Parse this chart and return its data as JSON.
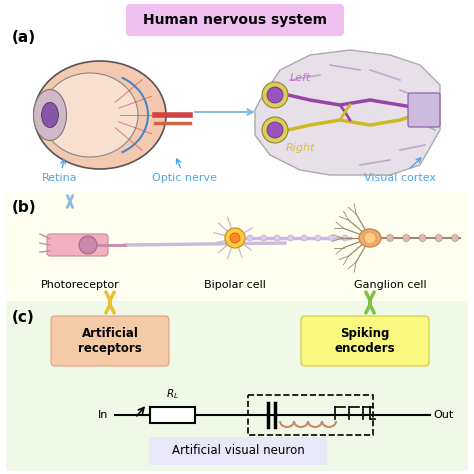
{
  "title_text": "Human nervous system",
  "title_bg": "#f0c0f0",
  "label_a": "(a)",
  "label_b": "(b)",
  "label_c": "(c)",
  "retina_label": "Retina",
  "optic_label": "Optic nerve",
  "cortex_label": "Visual cortex",
  "left_label": "Left",
  "right_label": "Right",
  "photo_label": "Photoreceptor",
  "bipolar_label": "Bipolar cell",
  "ganglion_label": "Ganglion cell",
  "art_recept_label": "Artificial\nreceptors",
  "spiking_label": "Spiking\nencoders",
  "in_label": "In",
  "out_label": "Out",
  "rl_label": "$R_L$",
  "neuron_label": "Artificial visual neuron",
  "bg_color": "#ffffff",
  "panel_b_bg": "#fffff0",
  "panel_c_bg": "#f0f8e8",
  "art_recept_bg": "#f5cba7",
  "spiking_bg": "#f9f980",
  "neuron_label_bg": "#e8e8f8",
  "blue_label_color": "#4da6e8",
  "left_color": "#d070d0",
  "right_color": "#d4c040",
  "arrow_yellow": "#e8c030",
  "arrow_green": "#80c040"
}
